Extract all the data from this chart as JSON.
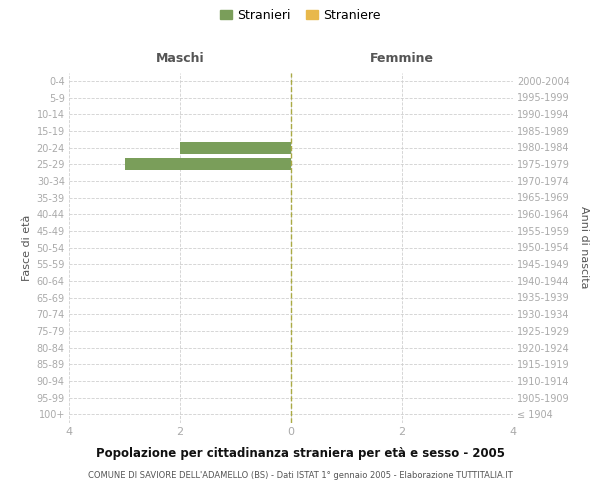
{
  "age_groups": [
    "100+",
    "95-99",
    "90-94",
    "85-89",
    "80-84",
    "75-79",
    "70-74",
    "65-69",
    "60-64",
    "55-59",
    "50-54",
    "45-49",
    "40-44",
    "35-39",
    "30-34",
    "25-29",
    "20-24",
    "15-19",
    "10-14",
    "5-9",
    "0-4"
  ],
  "birth_years": [
    "≤ 1904",
    "1905-1909",
    "1910-1914",
    "1915-1919",
    "1920-1924",
    "1925-1929",
    "1930-1934",
    "1935-1939",
    "1940-1944",
    "1945-1949",
    "1950-1954",
    "1955-1959",
    "1960-1964",
    "1965-1969",
    "1970-1974",
    "1975-1979",
    "1980-1984",
    "1985-1989",
    "1990-1994",
    "1995-1999",
    "2000-2004"
  ],
  "maschi_stranieri": [
    0,
    0,
    0,
    0,
    0,
    0,
    0,
    0,
    0,
    0,
    0,
    0,
    0,
    0,
    0,
    3,
    2,
    0,
    0,
    0,
    0
  ],
  "maschi_straniere": [
    0,
    0,
    0,
    0,
    0,
    0,
    0,
    0,
    0,
    0,
    0,
    0,
    0,
    0,
    0,
    0,
    0,
    0,
    0,
    0,
    0
  ],
  "femmine_stranieri": [
    0,
    0,
    0,
    0,
    0,
    0,
    0,
    0,
    0,
    0,
    0,
    0,
    0,
    0,
    0,
    0,
    0,
    0,
    0,
    0,
    0
  ],
  "femmine_straniere": [
    0,
    0,
    0,
    0,
    0,
    0,
    0,
    0,
    0,
    0,
    0,
    0,
    0,
    0,
    0,
    0,
    0,
    0,
    0,
    0,
    0
  ],
  "color_stranieri": "#7a9e5a",
  "color_straniere": "#e8b84b",
  "xlim": 4,
  "title_main": "Popolazione per cittadinanza straniera per età e sesso - 2005",
  "title_sub": "COMUNE DI SAVIORE DELL'ADAMELLO (BS) - Dati ISTAT 1° gennaio 2005 - Elaborazione TUTTITALIA.IT",
  "legend_stranieri": "Stranieri",
  "legend_straniere": "Straniere",
  "label_maschi": "Maschi",
  "label_femmine": "Femmine",
  "label_fasce": "Fasce di età",
  "label_anni": "Anni di nascita",
  "bg_color": "#ffffff",
  "grid_color": "#d0d0d0",
  "tick_color": "#aaaaaa"
}
